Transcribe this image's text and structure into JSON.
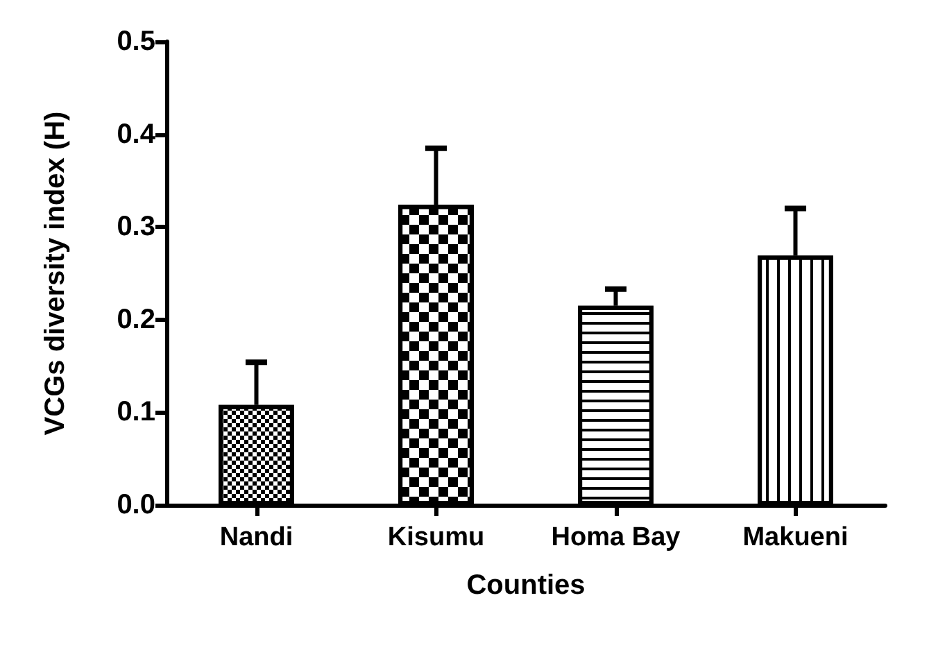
{
  "chart_data": {
    "type": "bar",
    "xlabel": "Counties",
    "ylabel": "VCGs diversity index (H)",
    "categories": [
      "Nandi",
      "Kisumu",
      "Homa Bay",
      "Makueni"
    ],
    "values": [
      0.108,
      0.324,
      0.215,
      0.269
    ],
    "errors": [
      [
        0.108,
        0.154
      ],
      [
        0.324,
        0.385
      ],
      [
        0.215,
        0.233
      ],
      [
        0.269,
        0.32
      ]
    ],
    "colors": [
      "#000000",
      "#000000",
      "#000000",
      "#000000"
    ],
    "ylim": [
      0,
      0.5
    ],
    "yticks": [
      {
        "value": 0,
        "label": "0.0"
      },
      {
        "value": 0.1,
        "label": "0.1"
      },
      {
        "value": 0.2,
        "label": "0.2"
      },
      {
        "value": 0.3,
        "label": "0.3"
      },
      {
        "value": 0.4,
        "label": "0.4"
      },
      {
        "value": 0.5,
        "label": "0.5"
      }
    ],
    "grid": false
  }
}
